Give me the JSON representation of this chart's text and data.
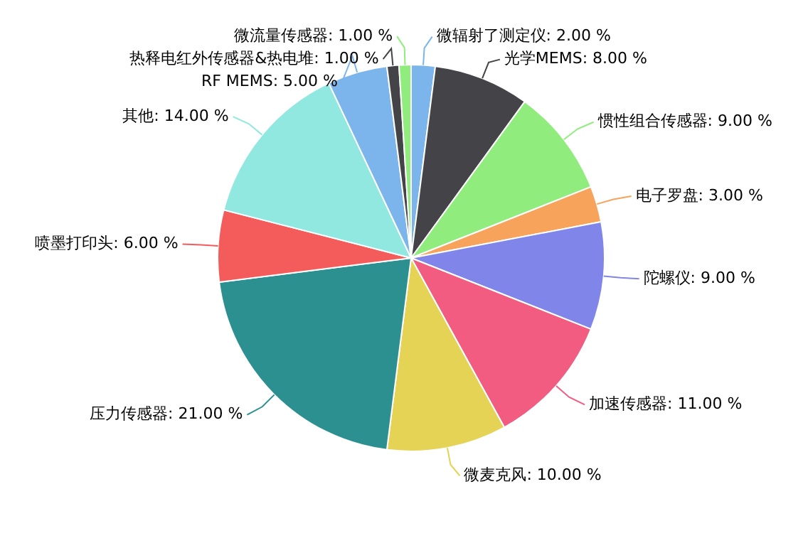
{
  "chart_data": {
    "type": "pie",
    "categories": [
      "微辐射了测定仪",
      "光学MEMS",
      "惯性组合传感器",
      "电子罗盘",
      "陀螺仪",
      "加速传感器",
      "微麦克风",
      "压力传感器",
      "喷墨打印头",
      "其他",
      "RF MEMS",
      "热释电红外传感器&热电堆",
      "微流量传感器"
    ],
    "values": [
      2,
      8,
      9,
      3,
      9,
      11,
      10,
      21,
      6,
      14,
      5,
      1,
      1
    ],
    "value_labels": [
      "2.00 %",
      "8.00 %",
      "9.00 %",
      "3.00 %",
      "9.00 %",
      "11.00 %",
      "10.00 %",
      "21.00 %",
      "6.00 %",
      "14.00 %",
      "5.00 %",
      "1.00 %",
      "1.00 %"
    ],
    "colors": [
      "#7cb5ec",
      "#434348",
      "#90ed7d",
      "#f7a35c",
      "#8085e9",
      "#f15c80",
      "#e4d354",
      "#2b908f",
      "#f45b5b",
      "#91e8e1",
      "#7cb5ec",
      "#434348",
      "#90ed7d"
    ],
    "legend": false
  }
}
